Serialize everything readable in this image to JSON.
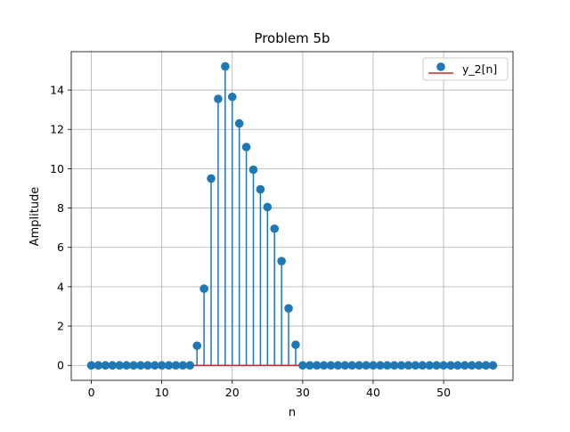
{
  "chart_data": {
    "type": "stem",
    "title": "Problem 5b",
    "xlabel": "n",
    "ylabel": "Amplitude",
    "xlim": [
      -2.85,
      59.85
    ],
    "ylim": [
      -0.76,
      15.95
    ],
    "x_ticks": [
      0,
      10,
      20,
      30,
      40,
      50
    ],
    "y_ticks": [
      0,
      2,
      4,
      6,
      8,
      10,
      12,
      14
    ],
    "grid": true,
    "legend": {
      "position": "top-right",
      "entries": [
        "y_2[n]"
      ]
    },
    "baseline": 0,
    "series": [
      {
        "name": "y_2[n]",
        "x": [
          0,
          1,
          2,
          3,
          4,
          5,
          6,
          7,
          8,
          9,
          10,
          11,
          12,
          13,
          14,
          15,
          16,
          17,
          18,
          19,
          20,
          21,
          22,
          23,
          24,
          25,
          26,
          27,
          28,
          29,
          30,
          31,
          32,
          33,
          34,
          35,
          36,
          37,
          38,
          39,
          40,
          41,
          42,
          43,
          44,
          45,
          46,
          47,
          48,
          49,
          50,
          51,
          52,
          53,
          54,
          55,
          56,
          57
        ],
        "values": [
          0,
          0,
          0,
          0,
          0,
          0,
          0,
          0,
          0,
          0,
          0,
          0,
          0,
          0,
          0,
          1.0,
          3.9,
          9.5,
          13.55,
          15.2,
          13.65,
          12.3,
          11.1,
          9.95,
          8.95,
          8.05,
          6.95,
          5.3,
          2.9,
          1.05,
          0,
          0,
          0,
          0,
          0,
          0,
          0,
          0,
          0,
          0,
          0,
          0,
          0,
          0,
          0,
          0,
          0,
          0,
          0,
          0,
          0,
          0,
          0,
          0,
          0,
          0,
          0,
          0
        ]
      }
    ],
    "colors": {
      "markers": "#1f77b4",
      "stems": "#1f77b4",
      "baseline": "#d62728",
      "grid": "#b0b0b0"
    }
  }
}
